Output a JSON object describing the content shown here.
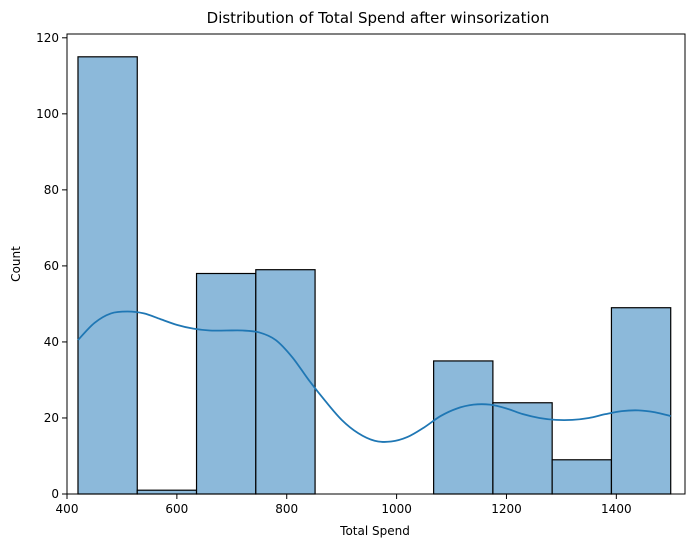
{
  "chart_data": {
    "type": "bar",
    "title": "Distribution of Total Spend after winsorization",
    "xlabel": "Total Spend",
    "ylabel": "Count",
    "xlim": [
      400,
      1525
    ],
    "ylim": [
      0,
      121
    ],
    "xticks": [
      400,
      600,
      800,
      1000,
      1200,
      1400
    ],
    "yticks": [
      0,
      20,
      40,
      60,
      80,
      100,
      120
    ],
    "bins": [
      {
        "x0": 420,
        "x1": 527.9,
        "count": 115
      },
      {
        "x0": 527.9,
        "x1": 635.8,
        "count": 1
      },
      {
        "x0": 635.8,
        "x1": 743.7,
        "count": 58
      },
      {
        "x0": 743.7,
        "x1": 851.6,
        "count": 59
      },
      {
        "x0": 851.6,
        "x1": 959.5,
        "count": 0
      },
      {
        "x0": 959.5,
        "x1": 1067.4,
        "count": 0
      },
      {
        "x0": 1067.4,
        "x1": 1175.3,
        "count": 35
      },
      {
        "x0": 1175.3,
        "x1": 1283.2,
        "count": 24
      },
      {
        "x0": 1283.2,
        "x1": 1391.1,
        "count": 9
      },
      {
        "x0": 1391.1,
        "x1": 1499,
        "count": 49
      }
    ],
    "kde": {
      "x": [
        420,
        450,
        480,
        510,
        540,
        570,
        600,
        630,
        660,
        690,
        720,
        750,
        780,
        810,
        840,
        870,
        900,
        930,
        960,
        990,
        1020,
        1050,
        1080,
        1110,
        1140,
        1170,
        1200,
        1230,
        1260,
        1290,
        1320,
        1350,
        1380,
        1410,
        1440,
        1470,
        1499
      ],
      "y": [
        40.5,
        45,
        47.5,
        48,
        47.5,
        46,
        44.5,
        43.5,
        43,
        43,
        43,
        42.5,
        40.5,
        36,
        30,
        24.5,
        19.5,
        16,
        14,
        13.8,
        15,
        17.5,
        20.5,
        22.5,
        23.5,
        23.5,
        22.5,
        21,
        20,
        19.5,
        19.5,
        20,
        21,
        21.8,
        22,
        21.5,
        20.5
      ]
    },
    "grid": false,
    "bar_fill": "#8cb9da",
    "bar_edge": "#000000",
    "line_color": "#1f77b4"
  }
}
